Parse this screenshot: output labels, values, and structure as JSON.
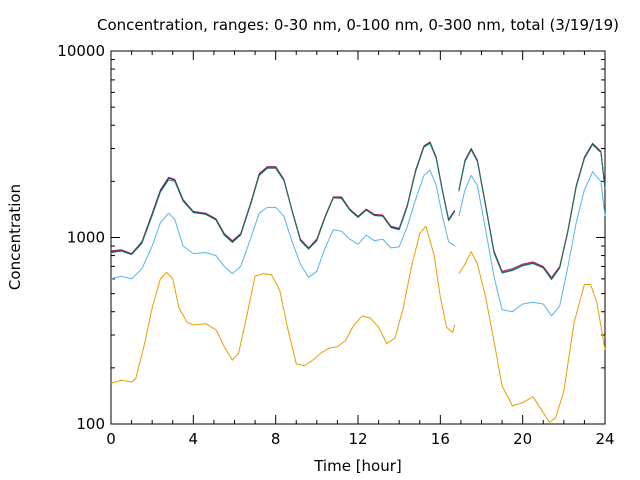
{
  "chart_data": {
    "type": "line",
    "title": "Concentration, ranges: 0-30 nm, 0-100 nm, 0-300 nm, total (3/19/19)",
    "xlabel": "Time [hour]",
    "ylabel": "Concentration",
    "xlim": [
      0,
      24
    ],
    "ylim": [
      100,
      10000
    ],
    "y_scale": "log",
    "x_ticks": [
      0,
      4,
      8,
      12,
      16,
      20,
      24
    ],
    "x_tick_labels": [
      "0",
      "4",
      "8",
      "12",
      "16",
      "20",
      "24"
    ],
    "y_ticks": [
      100,
      1000,
      10000
    ],
    "y_tick_labels": [
      "100",
      "1000",
      "10000"
    ],
    "grid": false,
    "legend": "none",
    "series": [
      {
        "color": "#e69f00",
        "x": [
          0,
          0.5,
          1.0,
          1.2,
          1.6,
          2.0,
          2.4,
          2.7,
          3.0,
          3.3,
          3.7,
          4.0,
          4.6,
          5.1,
          5.5,
          5.9,
          6.2,
          6.6,
          7.0,
          7.4,
          7.8,
          8.2,
          8.6,
          9.0,
          9.4,
          9.8,
          10.2,
          10.6,
          11.0,
          11.4,
          11.8,
          12.2,
          12.6,
          13.0,
          13.4,
          13.8,
          14.2,
          14.6,
          15.0,
          15.3,
          15.7,
          16.0,
          16.3,
          16.6,
          16.7
        ],
        "y": [
          165,
          172,
          168,
          175,
          260,
          420,
          600,
          650,
          600,
          420,
          350,
          340,
          345,
          320,
          260,
          220,
          240,
          380,
          620,
          640,
          630,
          520,
          320,
          210,
          205,
          220,
          240,
          255,
          260,
          280,
          340,
          380,
          370,
          330,
          270,
          290,
          420,
          700,
          1050,
          1150,
          800,
          480,
          330,
          310,
          340
        ],
        "y_ext": {
          "x": [
            16.9,
            17.2,
            17.5,
            17.8,
            18.2,
            18.6,
            19.0,
            19.5,
            20.0,
            20.5,
            21.0,
            21.3,
            21.6,
            22.0,
            22.5,
            23.0,
            23.3,
            23.6,
            24.0
          ],
          "y": [
            640,
            720,
            840,
            720,
            480,
            280,
            160,
            125,
            130,
            140,
            115,
            102,
            108,
            150,
            350,
            560,
            560,
            450,
            250
          ]
        }
      },
      {
        "color": "#56b4e9",
        "x": [
          0,
          0.5,
          1.0,
          1.5,
          2.0,
          2.4,
          2.8,
          3.1,
          3.5,
          4.0,
          4.6,
          5.1,
          5.5,
          5.9,
          6.3,
          6.8,
          7.2,
          7.6,
          8.0,
          8.4,
          8.8,
          9.2,
          9.6,
          10.0,
          10.4,
          10.8,
          11.2,
          11.6,
          12.0,
          12.4,
          12.8,
          13.2,
          13.6,
          14.0,
          14.4,
          14.8,
          15.2,
          15.5,
          15.8,
          16.1,
          16.4,
          16.7
        ],
        "y": [
          600,
          620,
          600,
          680,
          900,
          1200,
          1350,
          1250,
          900,
          820,
          830,
          800,
          700,
          640,
          700,
          1000,
          1350,
          1450,
          1450,
          1300,
          950,
          720,
          610,
          660,
          880,
          1100,
          1080,
          980,
          920,
          1030,
          960,
          980,
          880,
          890,
          1150,
          1600,
          2150,
          2300,
          1900,
          1300,
          950,
          900
        ],
        "y_ext": {
          "x": [
            16.9,
            17.2,
            17.5,
            17.8,
            18.2,
            18.6,
            19.0,
            19.5,
            20.0,
            20.5,
            21.0,
            21.4,
            21.8,
            22.2,
            22.6,
            23.0,
            23.4,
            23.8,
            24.0
          ],
          "y": [
            1300,
            1800,
            2150,
            1900,
            1100,
            620,
            410,
            400,
            440,
            450,
            440,
            380,
            430,
            700,
            1200,
            1800,
            2250,
            2000,
            1300
          ]
        }
      },
      {
        "color": "#c2185b",
        "x": [
          0,
          0.5,
          1.0,
          1.5,
          2.0,
          2.4,
          2.8,
          3.1,
          3.5,
          4.0,
          4.6,
          5.1,
          5.5,
          5.9,
          6.3,
          6.8,
          7.2,
          7.6,
          8.0,
          8.4,
          8.8,
          9.2,
          9.6,
          10.0,
          10.4,
          10.8,
          11.2,
          11.6,
          12.0,
          12.4,
          12.8,
          13.2,
          13.6,
          14.0,
          14.4,
          14.8,
          15.2,
          15.5,
          15.8,
          16.1,
          16.4,
          16.7
        ],
        "y": [
          850,
          860,
          820,
          950,
          1350,
          1800,
          2100,
          2050,
          1600,
          1380,
          1350,
          1260,
          1050,
          960,
          1050,
          1550,
          2200,
          2400,
          2400,
          2050,
          1400,
          980,
          880,
          980,
          1300,
          1650,
          1650,
          1420,
          1300,
          1420,
          1330,
          1320,
          1150,
          1120,
          1500,
          2300,
          3100,
          3250,
          2700,
          1800,
          1250,
          1400
        ],
        "y_ext": {
          "x": [
            16.9,
            17.2,
            17.5,
            17.8,
            18.2,
            18.6,
            19.0,
            19.5,
            20.0,
            20.5,
            21.0,
            21.4,
            21.8,
            22.2,
            22.6,
            23.0,
            23.4,
            23.8,
            24.0
          ],
          "y": [
            1800,
            2600,
            3000,
            2600,
            1500,
            850,
            660,
            680,
            720,
            740,
            700,
            610,
            700,
            1100,
            1900,
            2700,
            3200,
            2900,
            1850
          ]
        }
      },
      {
        "color": "#1a3a8a",
        "x": [
          0,
          0.5,
          1.0,
          1.5,
          2.0,
          2.4,
          2.8,
          3.1,
          3.5,
          4.0,
          4.6,
          5.1,
          5.5,
          5.9,
          6.3,
          6.8,
          7.2,
          7.6,
          8.0,
          8.4,
          8.8,
          9.2,
          9.6,
          10.0,
          10.4,
          10.8,
          11.2,
          11.6,
          12.0,
          12.4,
          12.8,
          13.2,
          13.6,
          14.0,
          14.4,
          14.8,
          15.2,
          15.5,
          15.8,
          16.1,
          16.4,
          16.7
        ],
        "y": [
          840,
          850,
          815,
          940,
          1330,
          1780,
          2080,
          2030,
          1590,
          1370,
          1340,
          1250,
          1040,
          950,
          1040,
          1540,
          2180,
          2380,
          2380,
          2040,
          1390,
          970,
          870,
          970,
          1290,
          1640,
          1640,
          1410,
          1290,
          1410,
          1320,
          1310,
          1140,
          1110,
          1490,
          2280,
          3080,
          3230,
          2680,
          1790,
          1240,
          1390
        ],
        "y_ext": {
          "x": [
            16.9,
            17.2,
            17.5,
            17.8,
            18.2,
            18.6,
            19.0,
            19.5,
            20.0,
            20.5,
            21.0,
            21.4,
            21.8,
            22.2,
            22.6,
            23.0,
            23.4,
            23.8,
            24.0
          ],
          "y": [
            1790,
            2580,
            2980,
            2580,
            1490,
            840,
            650,
            670,
            710,
            730,
            690,
            600,
            690,
            1090,
            1880,
            2680,
            3180,
            2880,
            1840
          ]
        }
      },
      {
        "color": "#1f7a5c",
        "x": [
          0,
          0.5,
          1.0,
          1.5,
          2.0,
          2.4,
          2.8,
          3.1,
          3.5,
          4.0,
          4.6,
          5.1,
          5.5,
          5.9,
          6.3,
          6.8,
          7.2,
          7.6,
          8.0,
          8.4,
          8.8,
          9.2,
          9.6,
          10.0,
          10.4,
          10.8,
          11.2,
          11.6,
          12.0,
          12.4,
          12.8,
          13.2,
          13.6,
          14.0,
          14.4,
          14.8,
          15.2,
          15.5,
          15.8,
          16.1,
          16.4,
          16.7
        ],
        "y": [
          830,
          845,
          810,
          930,
          1310,
          1750,
          2040,
          2000,
          1570,
          1360,
          1330,
          1240,
          1030,
          940,
          1030,
          1520,
          2150,
          2350,
          2350,
          2020,
          1380,
          960,
          865,
          960,
          1280,
          1630,
          1620,
          1400,
          1280,
          1400,
          1310,
          1300,
          1130,
          1100,
          1470,
          2250,
          3050,
          3200,
          2650,
          1770,
          1230,
          1380
        ],
        "y_ext": {
          "x": [
            16.9,
            17.2,
            17.5,
            17.8,
            18.2,
            18.6,
            19.0,
            19.5,
            20.0,
            20.5,
            21.0,
            21.4,
            21.8,
            22.2,
            22.6,
            23.0,
            23.4,
            23.8,
            24.0
          ],
          "y": [
            1770,
            2550,
            2950,
            2550,
            1470,
            830,
            645,
            665,
            705,
            725,
            685,
            595,
            685,
            1080,
            1860,
            2650,
            3150,
            2850,
            1820
          ]
        }
      }
    ]
  }
}
